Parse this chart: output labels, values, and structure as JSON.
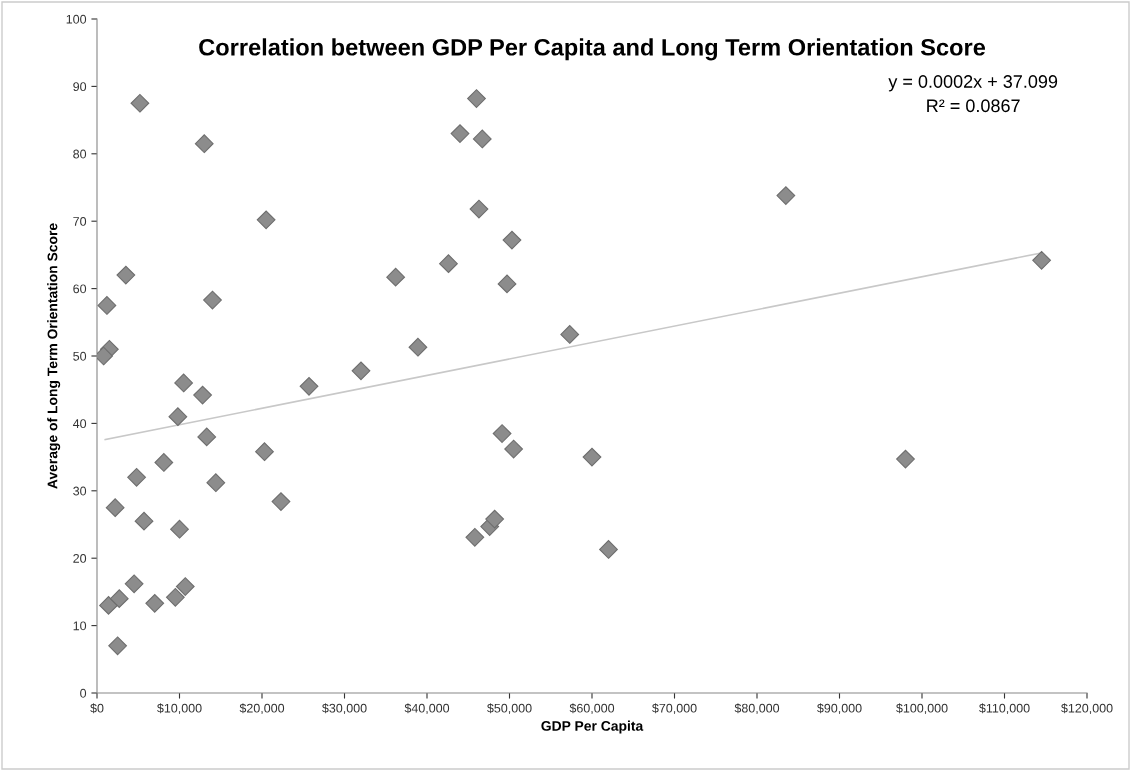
{
  "chart_data": {
    "type": "scatter",
    "title": "Correlation between GDP Per Capita and Long Term Orientation Score",
    "xlabel": "GDP Per Capita",
    "ylabel": "Average of Long Term Orientation Score",
    "annotations": [
      "y = 0.0002x + 37.099",
      "R² = 0.0867"
    ],
    "xlim": [
      0,
      120000
    ],
    "ylim": [
      0,
      100
    ],
    "xticks": [
      {
        "value": 0,
        "label": "$0"
      },
      {
        "value": 10000,
        "label": "$10,000"
      },
      {
        "value": 20000,
        "label": "$20,000"
      },
      {
        "value": 30000,
        "label": "$30,000"
      },
      {
        "value": 40000,
        "label": "$40,000"
      },
      {
        "value": 50000,
        "label": "$50,000"
      },
      {
        "value": 60000,
        "label": "$60,000"
      },
      {
        "value": 70000,
        "label": "$70,000"
      },
      {
        "value": 80000,
        "label": "$80,000"
      },
      {
        "value": 90000,
        "label": "$90,000"
      },
      {
        "value": 100000,
        "label": "$100,000"
      },
      {
        "value": 110000,
        "label": "$110,000"
      },
      {
        "value": 120000,
        "label": "$120,000"
      }
    ],
    "yticks": [
      0,
      10,
      20,
      30,
      40,
      50,
      60,
      70,
      80,
      90,
      100
    ],
    "grid": false,
    "legend": false,
    "marker": "diamond",
    "series": [
      {
        "color": "#8c8c8c",
        "x": [
          1200,
          1500,
          800,
          3500,
          5200,
          1400,
          2700,
          2500,
          2200,
          4500,
          4800,
          5700,
          7000,
          8100,
          9500,
          9800,
          10000,
          10500,
          10700,
          12800,
          13000,
          13300,
          14000,
          14400,
          20300,
          20500,
          22300,
          25700,
          32000,
          36200,
          38900,
          42600,
          44000,
          46000,
          46300,
          46700,
          45800,
          47600,
          48200,
          49100,
          49700,
          50300,
          50500,
          57300,
          60000,
          62000,
          83500,
          98000,
          114500
        ],
        "values": [
          57.5,
          51,
          50,
          62,
          87.5,
          13,
          14,
          7,
          27.5,
          16.2,
          32,
          25.5,
          13.3,
          34.2,
          14.2,
          41,
          24.3,
          46,
          15.8,
          44.2,
          81.5,
          38,
          58.3,
          31.2,
          35.8,
          70.2,
          28.4,
          45.5,
          47.8,
          61.7,
          51.3,
          63.7,
          83,
          88.2,
          71.8,
          82.2,
          23.1,
          24.7,
          25.8,
          38.5,
          60.7,
          67.2,
          36.2,
          53.2,
          35,
          21.3,
          73.8,
          34.7,
          64.2
        ]
      },
      {
        "type": "line",
        "color": "#c8c8c8",
        "line_style": "solid",
        "marker": "none",
        "x": [
          1000,
          114500
        ],
        "values": [
          37.6,
          65.3
        ]
      }
    ]
  }
}
